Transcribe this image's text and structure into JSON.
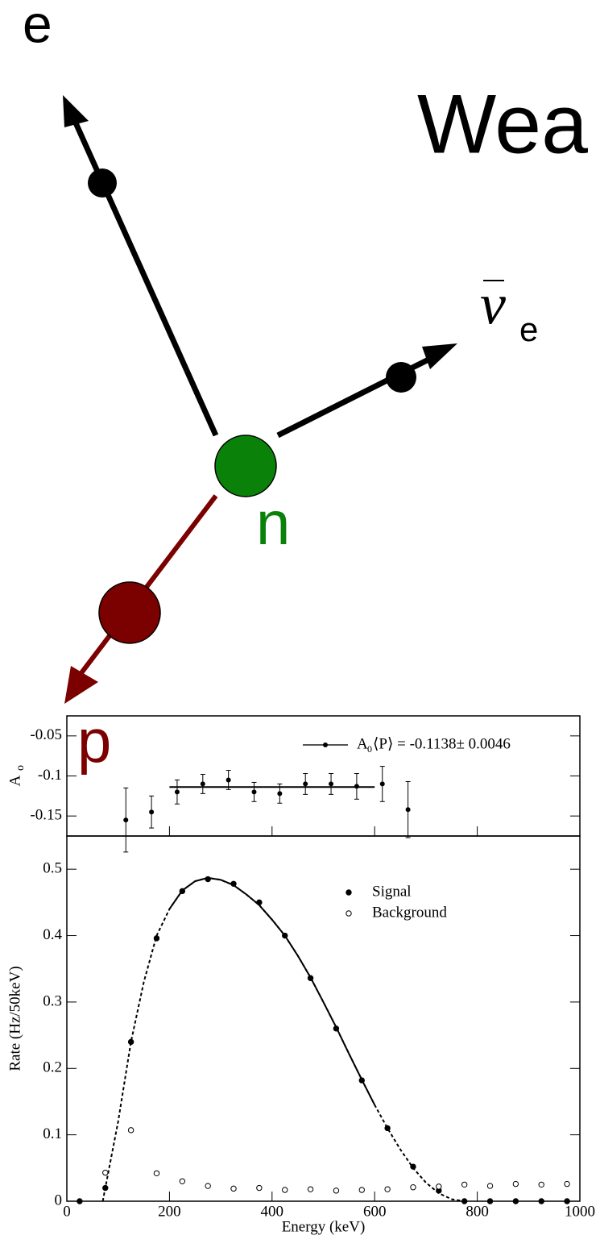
{
  "diagram": {
    "electron": "e",
    "title": "Wea",
    "neutrino": "ν",
    "neutrino_subscript": "e",
    "neutron": "n",
    "proton": "p"
  },
  "chart_data": [
    {
      "type": "errorbar",
      "x": [
        115,
        165,
        215,
        265,
        315,
        365,
        415,
        465,
        515,
        565,
        615,
        665
      ],
      "values": [
        -0.155,
        -0.145,
        -0.12,
        -0.11,
        -0.105,
        -0.12,
        -0.122,
        -0.11,
        -0.11,
        -0.113,
        -0.11,
        -0.142
      ],
      "errors": [
        0.04,
        0.02,
        0.015,
        0.012,
        0.012,
        0.012,
        0.012,
        0.013,
        0.013,
        0.016,
        0.022,
        0.035
      ],
      "color": "#000000",
      "ylabel": "A",
      "ylabel_subscript": "o",
      "xlim": [
        0,
        1000
      ],
      "xticks": [
        0,
        200,
        400,
        600,
        800,
        1000
      ],
      "show_xtick_labels": false,
      "ylim": [
        -0.175,
        -0.025
      ],
      "yticks": [
        -0.15,
        -0.1,
        -0.05
      ],
      "fit": {
        "x": [
          200,
          600
        ],
        "values": [
          -0.1138,
          -0.1138
        ]
      },
      "legend": {
        "text": "A",
        "subscript": "0",
        "rest": "⟨P⟩ = -0.1138± 0.0046"
      }
    },
    {
      "type": "scatter",
      "x": [
        25,
        75,
        125,
        175,
        225,
        275,
        325,
        375,
        425,
        475,
        525,
        575,
        625,
        675,
        725,
        775,
        825,
        875,
        925,
        975
      ],
      "series": [
        {
          "name": "Signal",
          "color": "#000000",
          "marker": "filled",
          "values": [
            0,
            0.02,
            0.24,
            0.396,
            0.467,
            0.485,
            0.478,
            0.45,
            0.4,
            0.336,
            0.26,
            0.182,
            0.11,
            0.052,
            0.016,
            0,
            0,
            0,
            0,
            0
          ]
        },
        {
          "name": "Background",
          "color": "#000000",
          "marker": "open",
          "values": [
            null,
            0.043,
            0.107,
            0.042,
            0.03,
            0.023,
            0.019,
            0.02,
            0.017,
            0.018,
            0.016,
            0.017,
            0.018,
            0.021,
            0.022,
            0.025,
            0.023,
            0.026,
            0.025,
            0.026
          ]
        }
      ],
      "fit": {
        "x": [
          70,
          100,
          125,
          150,
          175,
          200,
          225,
          250,
          275,
          300,
          325,
          350,
          375,
          400,
          425,
          450,
          475,
          500,
          525,
          550,
          575,
          600,
          625,
          650,
          675,
          700,
          725,
          750,
          775
        ],
        "values": [
          0,
          0.12,
          0.24,
          0.33,
          0.4,
          0.44,
          0.468,
          0.482,
          0.487,
          0.484,
          0.476,
          0.462,
          0.446,
          0.424,
          0.4,
          0.37,
          0.337,
          0.3,
          0.262,
          0.222,
          0.183,
          0.145,
          0.11,
          0.078,
          0.05,
          0.028,
          0.012,
          0.003,
          0
        ],
        "solid_xlim": [
          200,
          600
        ]
      },
      "xlabel": "Energy (keV)",
      "ylabel": "Rate (Hz/50keV)",
      "show_xtick_labels": true,
      "xlim": [
        0,
        1000
      ],
      "xticks": [
        0,
        200,
        400,
        600,
        800,
        1000
      ],
      "ylim": [
        0,
        0.55
      ],
      "yticks": [
        0,
        0.1,
        0.2,
        0.3,
        0.4,
        0.5
      ]
    }
  ]
}
